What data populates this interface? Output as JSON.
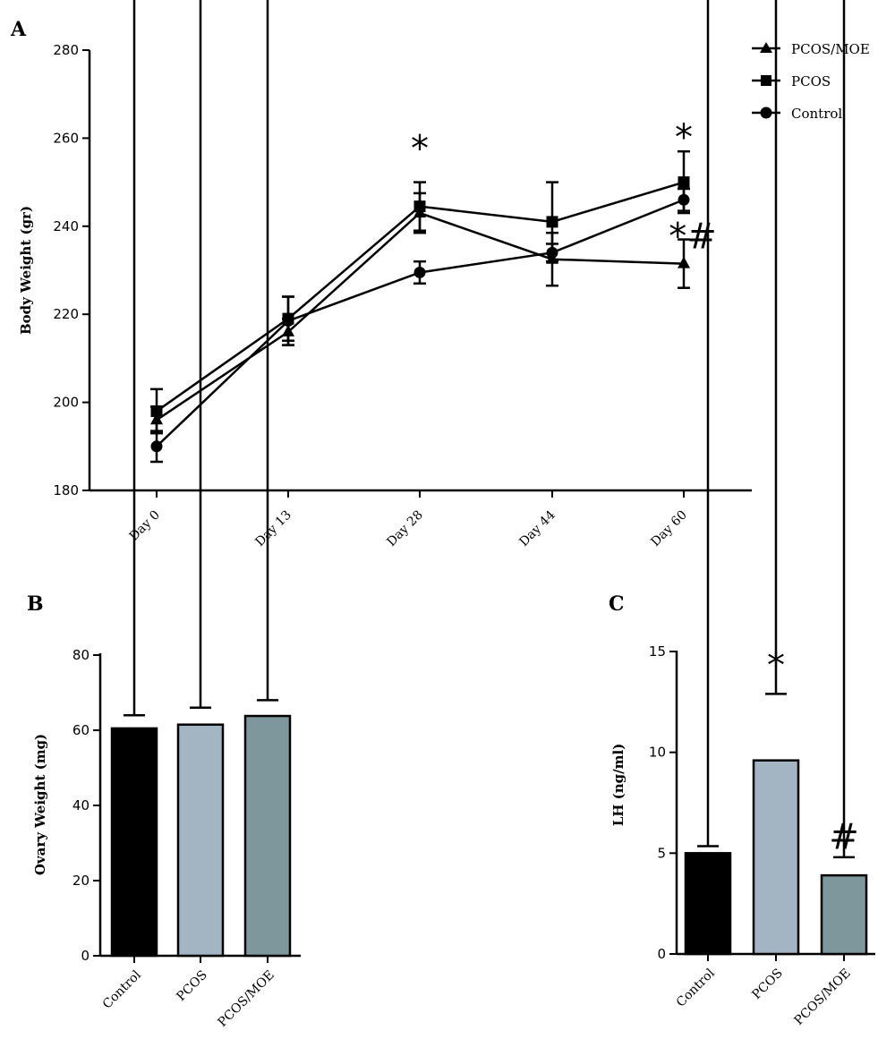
{
  "chart_data": [
    {
      "panel": "A",
      "type": "line",
      "ylabel": "Body Weight (gr)",
      "ylim": [
        180,
        280
      ],
      "yticks": [
        180,
        200,
        220,
        240,
        260,
        280
      ],
      "categories": [
        "Day 0",
        "Day 13",
        "Day 28",
        "Day 44",
        "Day 60"
      ],
      "series": [
        {
          "name": "PCOS/MOE",
          "marker": "triangle",
          "values": [
            196,
            216,
            243,
            232.5,
            231.5
          ],
          "errors": [
            3,
            3,
            4.5,
            6,
            5.5
          ]
        },
        {
          "name": "PCOS",
          "marker": "square",
          "values": [
            198,
            219,
            244.5,
            241,
            250
          ],
          "errors": [
            5,
            5,
            5.5,
            9,
            7
          ]
        },
        {
          "name": "Control",
          "marker": "circle",
          "values": [
            190,
            218.5,
            229.5,
            234,
            246
          ],
          "errors": [
            3.5,
            5.5,
            2.5,
            2,
            2.5
          ]
        }
      ],
      "annotations": [
        {
          "category": "Day 28",
          "y": 259,
          "text": "*"
        },
        {
          "category": "Day 60",
          "y": 261.5,
          "text": "*"
        },
        {
          "category": "Day 60",
          "y": 239,
          "text": "*#"
        }
      ],
      "legend_position": "top-right"
    },
    {
      "panel": "B",
      "type": "bar",
      "ylabel": "Ovary Weight (mg)",
      "ylim": [
        0,
        80
      ],
      "yticks": [
        0,
        20,
        40,
        60,
        80
      ],
      "categories": [
        "Control",
        "PCOS",
        "PCOS/MOE"
      ],
      "values": [
        60.5,
        61.5,
        63.8
      ],
      "errors": [
        3.5,
        4.5,
        4.2
      ],
      "colors": [
        "#000000",
        "#a3b4c2",
        "#7e979d"
      ],
      "annotations": []
    },
    {
      "panel": "C",
      "type": "bar",
      "ylabel": "LH (ng/ml)",
      "ylim": [
        0,
        15
      ],
      "yticks": [
        0,
        5,
        10,
        15
      ],
      "categories": [
        "Control",
        "PCOS",
        "PCOS/MOE"
      ],
      "values": [
        5.0,
        9.6,
        3.9
      ],
      "errors": [
        0.35,
        3.3,
        0.9
      ],
      "colors": [
        "#000000",
        "#a3b4c2",
        "#7e979d"
      ],
      "annotations": [
        {
          "category": "PCOS",
          "y": 14.6,
          "text": "*"
        },
        {
          "category": "PCOS/MOE",
          "y": 6.1,
          "text": "#"
        }
      ]
    }
  ]
}
